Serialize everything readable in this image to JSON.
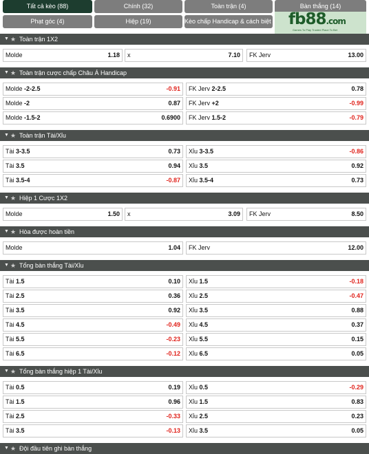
{
  "tabs": {
    "row1": [
      "Tất cả kèo (88)",
      "Chính (32)",
      "Toàn trận (4)",
      "Bàn thắng (14)"
    ],
    "row2": [
      "Phạt góc (4)",
      "Hiệp (19)",
      "Kèo chấp Handicap & cách biệt (3)"
    ]
  },
  "logo": {
    "main": "fb88",
    "domain": ".com",
    "tagline": "Games To Play   Trusted Place To Bet"
  },
  "sections": [
    {
      "title": "Toàn trận 1X2",
      "layout": "three",
      "rows": [
        [
          {
            "label": "Molde",
            "value": "1.18"
          },
          {
            "label": "x",
            "value": "7.10"
          },
          {
            "label": "FK Jerv",
            "value": "13.00"
          }
        ]
      ]
    },
    {
      "title": "Toàn trận cược chấp Châu Á Handicap",
      "layout": "two",
      "rows": [
        [
          {
            "label": "Molde",
            "line": "-2-2.5",
            "value": "-0.91"
          },
          {
            "label": "FK Jerv",
            "line": "2-2.5",
            "value": "0.78"
          }
        ],
        [
          {
            "label": "Molde",
            "line": "-2",
            "value": "0.87"
          },
          {
            "label": "FK Jerv",
            "line": "+2",
            "value": "-0.99"
          }
        ],
        [
          {
            "label": "Molde",
            "line": "-1.5-2",
            "value": "0.6900"
          },
          {
            "label": "FK Jerv",
            "line": "1.5-2",
            "value": "-0.79"
          }
        ]
      ]
    },
    {
      "title": "Toàn trận Tài/Xỉu",
      "layout": "two",
      "rows": [
        [
          {
            "label": "Tài",
            "line": "3-3.5",
            "value": "0.73"
          },
          {
            "label": "Xỉu",
            "line": "3-3.5",
            "value": "-0.86"
          }
        ],
        [
          {
            "label": "Tài",
            "line": "3.5",
            "value": "0.94"
          },
          {
            "label": "Xỉu",
            "line": "3.5",
            "value": "0.92"
          }
        ],
        [
          {
            "label": "Tài",
            "line": "3.5-4",
            "value": "-0.87"
          },
          {
            "label": "Xỉu",
            "line": "3.5-4",
            "value": "0.73"
          }
        ]
      ]
    },
    {
      "title": "Hiệp 1 Cược 1X2",
      "layout": "three",
      "rows": [
        [
          {
            "label": "Molde",
            "value": "1.50"
          },
          {
            "label": "x",
            "value": "3.09"
          },
          {
            "label": "FK Jerv",
            "value": "8.50"
          }
        ]
      ]
    },
    {
      "title": "Hòa được hoàn tiền",
      "layout": "two",
      "rows": [
        [
          {
            "label": "Molde",
            "line": "",
            "value": "1.04"
          },
          {
            "label": "FK Jerv",
            "line": "",
            "value": "12.00"
          }
        ]
      ]
    },
    {
      "title": "Tổng bàn thắng Tài/Xỉu",
      "layout": "two",
      "rows": [
        [
          {
            "label": "Tài",
            "line": "1.5",
            "value": "0.10"
          },
          {
            "label": "Xỉu",
            "line": "1.5",
            "value": "-0.18"
          }
        ],
        [
          {
            "label": "Tài",
            "line": "2.5",
            "value": "0.36"
          },
          {
            "label": "Xỉu",
            "line": "2.5",
            "value": "-0.47"
          }
        ],
        [
          {
            "label": "Tài",
            "line": "3.5",
            "value": "0.92"
          },
          {
            "label": "Xỉu",
            "line": "3.5",
            "value": "0.88"
          }
        ],
        [
          {
            "label": "Tài",
            "line": "4.5",
            "value": "-0.49"
          },
          {
            "label": "Xỉu",
            "line": "4.5",
            "value": "0.37"
          }
        ],
        [
          {
            "label": "Tài",
            "line": "5.5",
            "value": "-0.23"
          },
          {
            "label": "Xỉu",
            "line": "5.5",
            "value": "0.15"
          }
        ],
        [
          {
            "label": "Tài",
            "line": "6.5",
            "value": "-0.12"
          },
          {
            "label": "Xỉu",
            "line": "6.5",
            "value": "0.05"
          }
        ]
      ]
    },
    {
      "title": "Tổng bàn thắng hiệp 1 Tài/Xỉu",
      "layout": "two",
      "rows": [
        [
          {
            "label": "Tài",
            "line": "0.5",
            "value": "0.19"
          },
          {
            "label": "Xỉu",
            "line": "0.5",
            "value": "-0.29"
          }
        ],
        [
          {
            "label": "Tài",
            "line": "1.5",
            "value": "0.96"
          },
          {
            "label": "Xỉu",
            "line": "1.5",
            "value": "0.83"
          }
        ],
        [
          {
            "label": "Tài",
            "line": "2.5",
            "value": "-0.33"
          },
          {
            "label": "Xỉu",
            "line": "2.5",
            "value": "0.23"
          }
        ],
        [
          {
            "label": "Tài",
            "line": "3.5",
            "value": "-0.13"
          },
          {
            "label": "Xỉu",
            "line": "3.5",
            "value": "0.05"
          }
        ]
      ]
    },
    {
      "title": "Đội đầu tiên ghi bàn thắng",
      "layout": "three",
      "rows": []
    }
  ],
  "colors": {
    "header_bg": "#4b4f4d",
    "active_tab": "#1d3d2f",
    "tab_bg": "#7d7d7d",
    "negative": "#e0221b"
  },
  "icons": {
    "collapse": "caret-down-icon",
    "favorite": "star-icon"
  }
}
